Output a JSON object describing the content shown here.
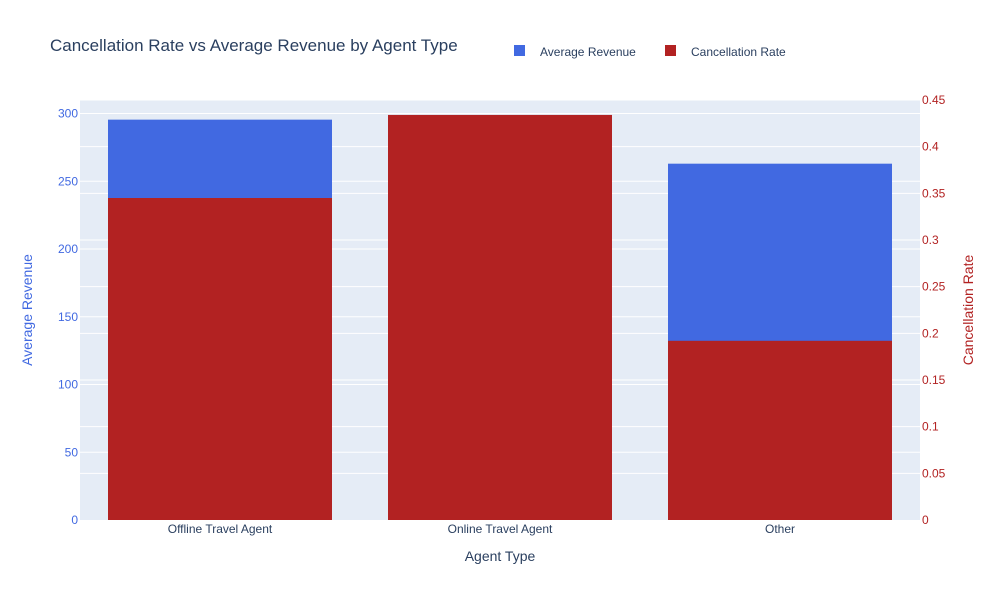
{
  "chart_data": {
    "type": "bar",
    "title": "Cancellation Rate vs Average Revenue by Agent Type",
    "xlabel": "Agent Type",
    "categories": [
      "Offline Travel Agent",
      "Online Travel Agent",
      "Other"
    ],
    "series": [
      {
        "name": "Average Revenue",
        "axis": "left",
        "color": "#4169e1",
        "values": [
          295.5,
          295.5,
          263
        ]
      },
      {
        "name": "Cancellation Rate",
        "axis": "right",
        "color": "#b22222",
        "values": [
          0.345,
          0.434,
          0.192
        ]
      }
    ],
    "y_left": {
      "label": "Average Revenue",
      "range": [
        0,
        310
      ],
      "ticks": [
        0,
        50,
        100,
        150,
        200,
        250,
        300
      ],
      "tick_labels": [
        "0",
        "50",
        "100",
        "150",
        "200",
        "250",
        "300"
      ],
      "color": "#4169e1"
    },
    "y_right": {
      "label": "Cancellation Rate",
      "range": [
        0,
        0.45
      ],
      "ticks": [
        0,
        0.05,
        0.1,
        0.15,
        0.2,
        0.25,
        0.3,
        0.35,
        0.4,
        0.45
      ],
      "tick_labels": [
        "0",
        "0.05",
        "0.1",
        "0.15",
        "0.2",
        "0.25",
        "0.3",
        "0.35",
        "0.4",
        "0.45"
      ],
      "color": "#b22222"
    },
    "legend": {
      "position": "top"
    },
    "plot_background": "#e5ecf6"
  }
}
